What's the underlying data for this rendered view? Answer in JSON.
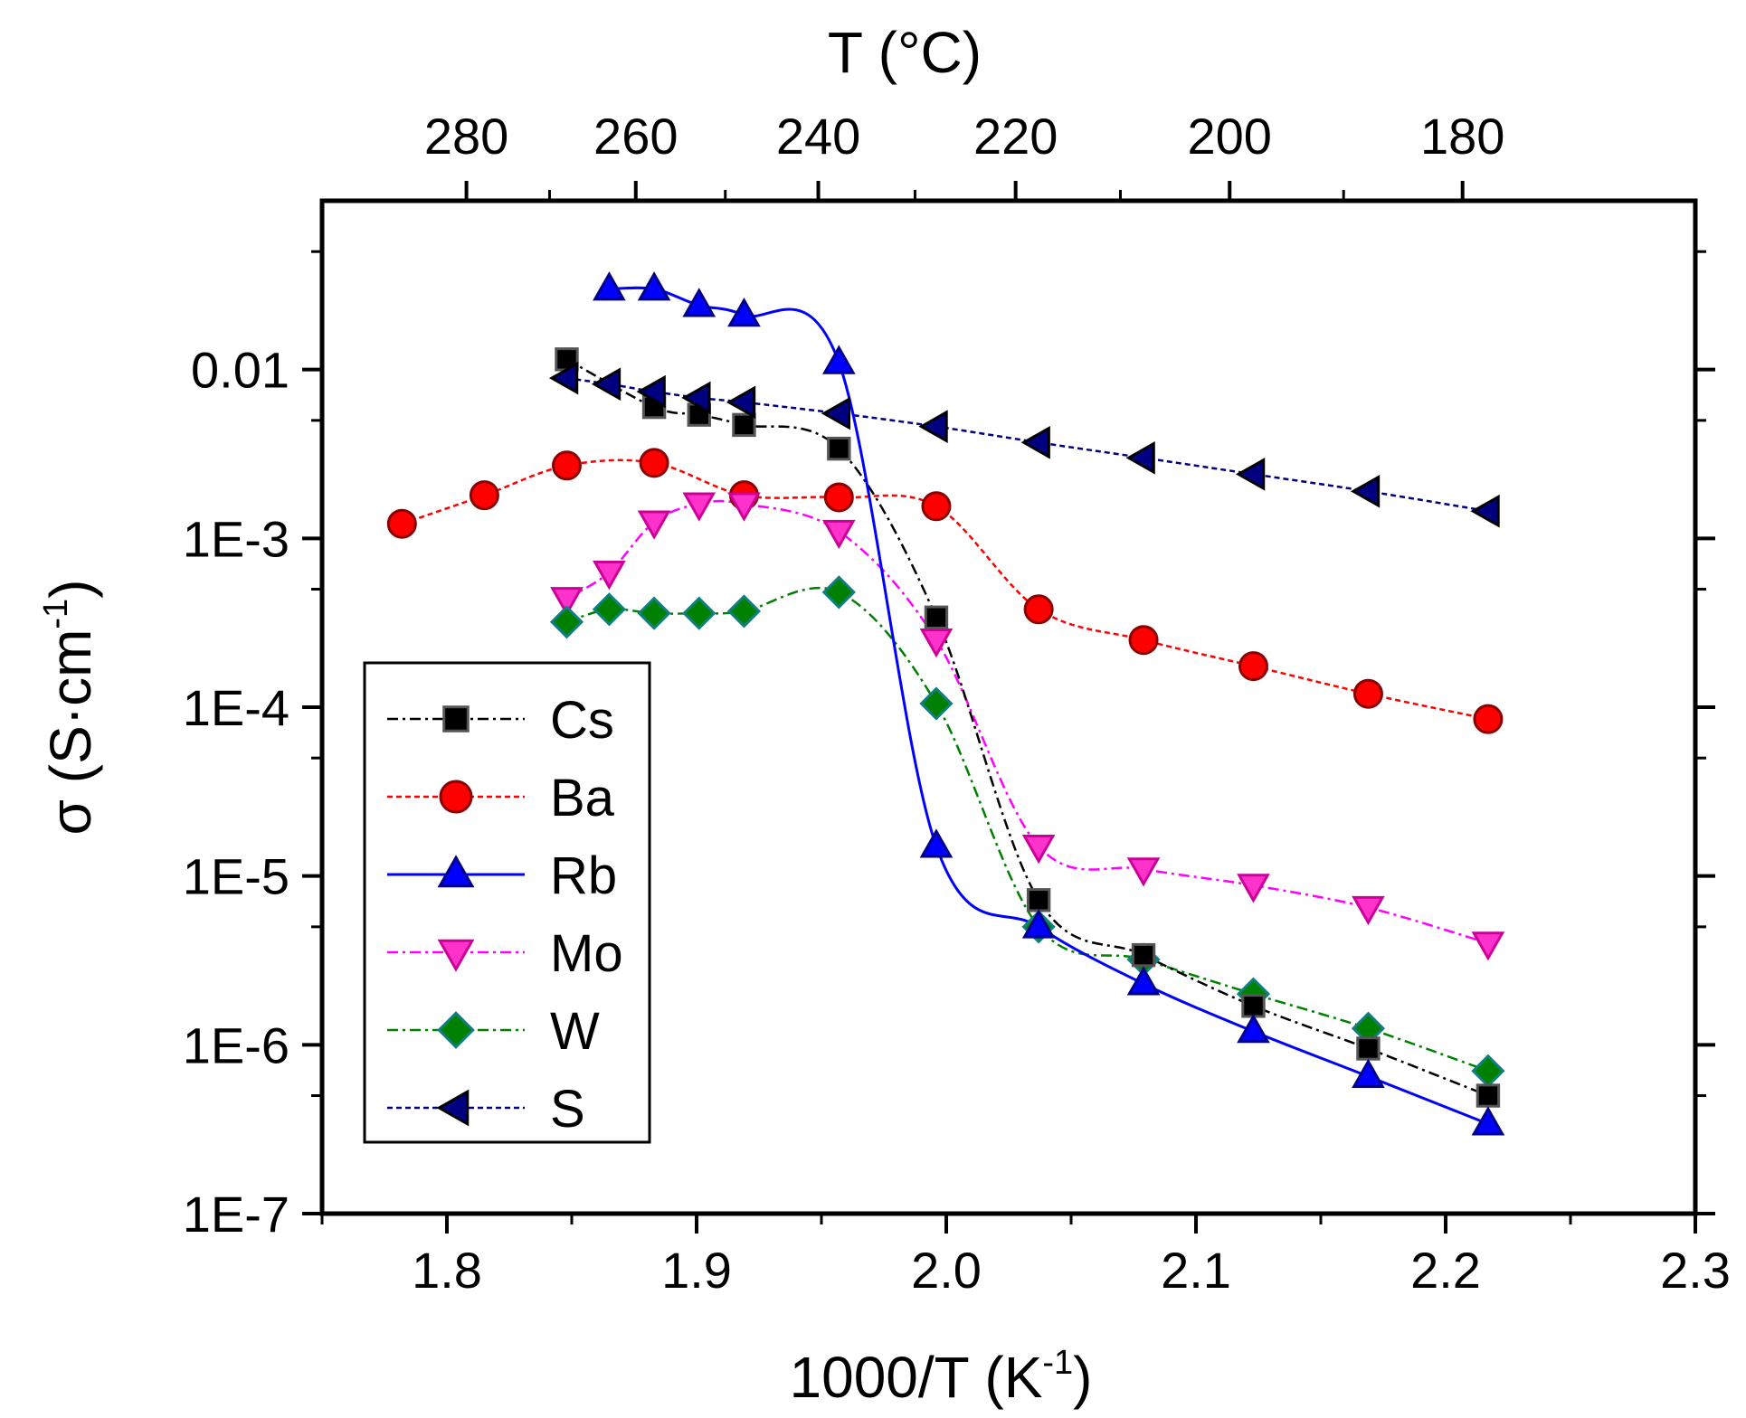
{
  "chart_data": {
    "type": "scatter",
    "xlabel": "1000/T (K",
    "xlabel_sup": "-1",
    "xlabel_end": ")",
    "ylabel": "σ (S·cm",
    "ylabel_sup": "-1",
    "ylabel_end": ")",
    "top_axis_title": "T (°C)",
    "y_scale": "log",
    "xlim": [
      1.75,
      2.3
    ],
    "ylim": [
      1e-07,
      0.1
    ],
    "x_ticks": [
      "1.8",
      "1.9",
      "2.0",
      "2.1",
      "2.2",
      "2.3"
    ],
    "x_tick_values": [
      1.8,
      1.9,
      2.0,
      2.1,
      2.2,
      2.3
    ],
    "y_ticks": [
      "1E-7",
      "1E-6",
      "1E-5",
      "1E-4",
      "1E-3",
      "0.01"
    ],
    "y_tick_values": [
      1e-07,
      1e-06,
      1e-05,
      0.0001,
      0.001,
      0.01
    ],
    "top_ticks": [
      "280",
      "260",
      "240",
      "220",
      "200",
      "180"
    ],
    "top_tick_celsius": [
      280,
      260,
      240,
      220,
      200,
      180
    ],
    "legend_position": "lower-left",
    "series": [
      {
        "name": "Cs",
        "marker": "square",
        "line": "dash-dot",
        "color": "#000000",
        "marker_fill": "#000000",
        "marker_edge": "#555555",
        "x": [
          1.848,
          1.883,
          1.901,
          1.919,
          1.957,
          1.996,
          2.037,
          2.079,
          2.123,
          2.169,
          2.217
        ],
        "y": [
          0.0115,
          0.006,
          0.0054,
          0.0047,
          0.0034,
          0.00034,
          7.2e-06,
          3.4e-06,
          1.7e-06,
          9.5e-07,
          5e-07
        ]
      },
      {
        "name": "Ba",
        "marker": "circle",
        "line": "dash",
        "color": "#ff0000",
        "marker_fill": "#ff0000",
        "marker_edge": "#8b0000",
        "x": [
          1.782,
          1.815,
          1.848,
          1.883,
          1.919,
          1.957,
          1.996,
          2.037,
          2.079,
          2.123,
          2.169,
          2.217
        ],
        "y": [
          0.00122,
          0.0018,
          0.0027,
          0.0028,
          0.0018,
          0.00175,
          0.00155,
          0.00038,
          0.00025,
          0.000175,
          0.00012,
          8.5e-05
        ]
      },
      {
        "name": "Rb",
        "marker": "triangle-up",
        "line": "solid",
        "color": "#0000ff",
        "marker_fill": "#0000ff",
        "marker_edge": "#00008b",
        "x": [
          1.865,
          1.883,
          1.901,
          1.919,
          1.957,
          1.996,
          2.037,
          2.079,
          2.123,
          2.169,
          2.217
        ],
        "y": [
          0.03,
          0.03,
          0.024,
          0.021,
          0.011,
          1.5e-05,
          5e-06,
          2.3e-06,
          1.2e-06,
          6.5e-07,
          3.4e-07
        ]
      },
      {
        "name": "Mo",
        "marker": "triangle-down",
        "line": "dash-dot",
        "color": "#ff00ff",
        "marker_fill": "#ff33cc",
        "marker_edge": "#cc0099",
        "x": [
          1.848,
          1.865,
          1.883,
          1.901,
          1.919,
          1.957,
          1.996,
          2.037,
          2.079,
          2.123,
          2.169,
          2.217
        ],
        "y": [
          0.00044,
          0.00063,
          0.00125,
          0.0016,
          0.0016,
          0.0011,
          0.00025,
          1.5e-05,
          1.1e-05,
          8.8e-06,
          6.5e-06,
          4e-06
        ]
      },
      {
        "name": "W",
        "marker": "diamond",
        "line": "dash-dot",
        "color": "#008000",
        "marker_fill": "#008000",
        "marker_edge": "#0f7f7f",
        "x": [
          1.848,
          1.865,
          1.883,
          1.901,
          1.919,
          1.957,
          1.996,
          2.037,
          2.079,
          2.123,
          2.169,
          2.217
        ],
        "y": [
          0.00032,
          0.00038,
          0.00036,
          0.00036,
          0.00037,
          0.00048,
          0.000105,
          5e-06,
          3.2e-06,
          2e-06,
          1.25e-06,
          7e-07
        ]
      },
      {
        "name": "S",
        "marker": "triangle-left",
        "line": "dash",
        "color": "#000080",
        "marker_fill": "#000080",
        "marker_edge": "#000000",
        "x": [
          1.848,
          1.865,
          1.883,
          1.901,
          1.919,
          1.957,
          1.996,
          2.037,
          2.079,
          2.123,
          2.169,
          2.217
        ],
        "y": [
          0.0089,
          0.0082,
          0.0074,
          0.0068,
          0.0064,
          0.0055,
          0.0046,
          0.0037,
          0.003,
          0.0024,
          0.0019,
          0.00145
        ]
      }
    ]
  }
}
